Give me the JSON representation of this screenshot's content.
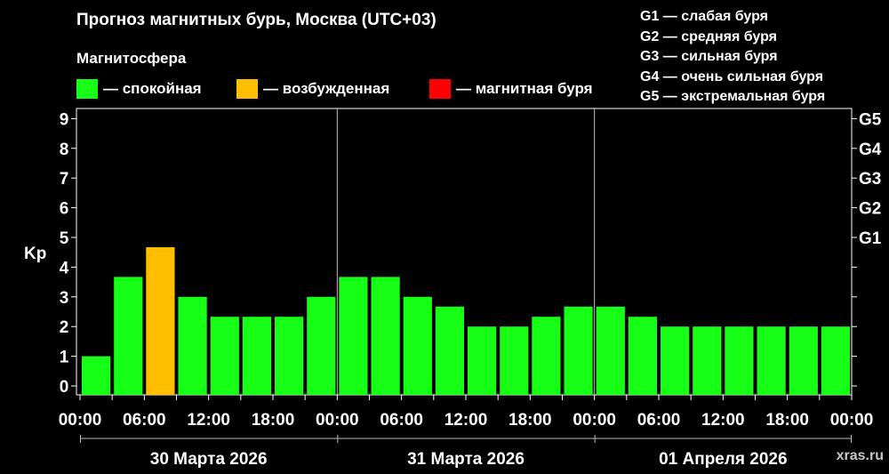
{
  "title": "Прогноз магнитных бурь, Москва (UTC+03)",
  "legend": {
    "title": "Магнитосфера",
    "items": [
      {
        "label": "— спокойная",
        "color": "#17ff17"
      },
      {
        "label": "— возбужденная",
        "color": "#ffbf00"
      },
      {
        "label": "— магнитная буря",
        "color": "#ff0000"
      }
    ]
  },
  "storm_levels": [
    "G1 — слабая буря",
    "G2 — средняя буря",
    "G3 — сильная буря",
    "G4 — очень сильная буря",
    "G5 — экстремальная буря"
  ],
  "watermark": "xras.ru",
  "chart_data": {
    "type": "bar",
    "ylabel": "Kp",
    "ylim": [
      0,
      9
    ],
    "y_ticks": [
      "0",
      "1",
      "2",
      "3",
      "4",
      "5",
      "6",
      "7",
      "8",
      "9"
    ],
    "right_axis_labels": [
      {
        "kp": 5,
        "label": "G1"
      },
      {
        "kp": 6,
        "label": "G2"
      },
      {
        "kp": 7,
        "label": "G3"
      },
      {
        "kp": 8,
        "label": "G4"
      },
      {
        "kp": 9,
        "label": "G5"
      }
    ],
    "x_tick_labels": [
      "00:00",
      "06:00",
      "12:00",
      "18:00",
      "00:00",
      "06:00",
      "12:00",
      "18:00",
      "00:00",
      "06:00",
      "12:00",
      "18:00",
      "00:00"
    ],
    "days": [
      "30 Марта 2026",
      "31 Марта 2026",
      "01 Апреля 2026"
    ],
    "interval_hours": 3,
    "values": [
      1.0,
      3.67,
      4.67,
      3.0,
      2.33,
      2.33,
      2.33,
      3.0,
      3.67,
      3.67,
      3.0,
      2.67,
      2.0,
      2.0,
      2.33,
      2.67,
      2.67,
      2.33,
      2.0,
      2.0,
      2.0,
      2.0,
      2.0,
      2.0
    ],
    "colors": [
      "#17ff17",
      "#17ff17",
      "#ffbf00",
      "#17ff17",
      "#17ff17",
      "#17ff17",
      "#17ff17",
      "#17ff17",
      "#17ff17",
      "#17ff17",
      "#17ff17",
      "#17ff17",
      "#17ff17",
      "#17ff17",
      "#17ff17",
      "#17ff17",
      "#17ff17",
      "#17ff17",
      "#17ff17",
      "#17ff17",
      "#17ff17",
      "#17ff17",
      "#17ff17",
      "#17ff17"
    ],
    "grid": false
  }
}
